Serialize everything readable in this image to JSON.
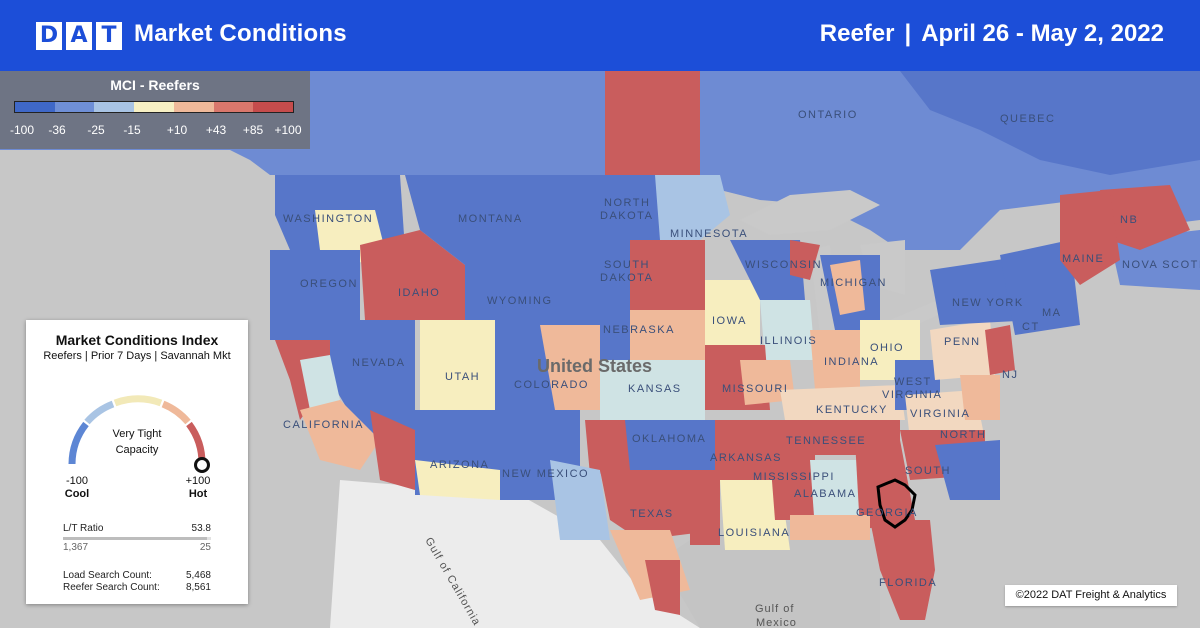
{
  "header": {
    "logo_letters": [
      "D",
      "A",
      "T"
    ],
    "title": "Market Conditions",
    "equipment": "Reefer",
    "separator": "|",
    "date_range": "April 26 - May 2, 2022"
  },
  "legend": {
    "title": "MCI - Reefers",
    "scale_colors": [
      "#3f68c8",
      "#6f8fd6",
      "#a9c4e4",
      "#f7f0c4",
      "#efb99a",
      "#d9776c",
      "#c54c4c"
    ],
    "ticks": [
      "-100",
      "-36",
      "-25",
      "-15",
      "+10",
      "+43",
      "+85",
      "+100"
    ]
  },
  "card": {
    "title": "Market Conditions Index",
    "subtitle": "Reefers | Prior 7 Days | Savannah Mkt",
    "gauge_state_line1": "Very Tight",
    "gauge_state_line2": "Capacity",
    "gauge_value": 100,
    "min_value": "-100",
    "min_label": "Cool",
    "max_value": "+100",
    "max_label": "Hot",
    "lt_label": "L/T Ratio",
    "lt_value": "53.8",
    "lt_left": "1,367",
    "lt_right": "25",
    "load_label": "Load Search Count:",
    "load_value": "5,468",
    "reefer_label": "Reefer Search Count:",
    "reefer_value": "8,561"
  },
  "map": {
    "highlighted_market": "Savannah",
    "labels": {
      "ontario": "ONTARIO",
      "quebec": "QUEBEC",
      "washington": "WASHINGTON",
      "montana": "MONTANA",
      "north_dakota_1": "NORTH",
      "north_dakota_2": "DAKOTA",
      "minnesota": "MINNESOTA",
      "oregon": "OREGON",
      "idaho": "IDAHO",
      "wyoming": "WYOMING",
      "south_dakota_1": "SOUTH",
      "south_dakota_2": "DAKOTA",
      "wisconsin": "WISCONSIN",
      "michigan": "MICHIGAN",
      "maine": "MAINE",
      "nb": "NB",
      "nova_scotia": "NOVA SCOTIA",
      "new_york": "NEW YORK",
      "ma": "MA",
      "ct": "CT",
      "nebraska": "NEBRASKA",
      "iowa": "IOWA",
      "nevada": "NEVADA",
      "utah": "UTAH",
      "colorado": "COLORADO",
      "united_states": "United States",
      "kansas": "KANSAS",
      "illinois": "ILLINOIS",
      "indiana": "INDIANA",
      "ohio": "OHIO",
      "penn": "PENN",
      "nj": "NJ",
      "california": "CALIFORNIA",
      "missouri": "MISSOURI",
      "kentucky": "KENTUCKY",
      "west_virginia_1": "WEST",
      "west_virginia_2": "VIRGINIA",
      "virginia": "VIRGINIA",
      "arizona": "ARIZONA",
      "new_mexico": "NEW MEXICO",
      "oklahoma": "OKLAHOMA",
      "arkansas": "ARKANSAS",
      "tennessee": "TENNESSEE",
      "north_carolina": "NORTH",
      "south_carolina": "SOUTH",
      "mississippi": "MISSISSIPPI",
      "alabama": "ALABAMA",
      "georgia": "GEORGIA",
      "texas": "TEXAS",
      "louisiana": "LOUISIANA",
      "florida": "FLORIDA",
      "gulf_of_california": "Gulf of California",
      "gulf_of_mexico_1": "Gulf of",
      "gulf_of_mexico_2": "Mexico"
    }
  },
  "copyright": "©2022 DAT Freight & Analytics"
}
